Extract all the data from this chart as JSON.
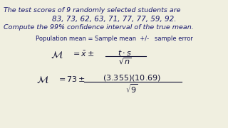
{
  "bg_color": "#f0efe0",
  "text_color": "#1a1a6e",
  "dark_color": "#111133",
  "title_line1": "The test scores of 9 randomly selected students are",
  "title_line2": "83, 73, 62, 63, 71, 77, 77, 59, 92.",
  "title_line3": "Compute the 99% confidence interval of the true mean.",
  "line4": "Population mean = Sample mean  +/-   sample error",
  "fs_title": 6.8,
  "fs_title2": 7.5,
  "fs_body": 6.0,
  "fs_formula": 8.0
}
